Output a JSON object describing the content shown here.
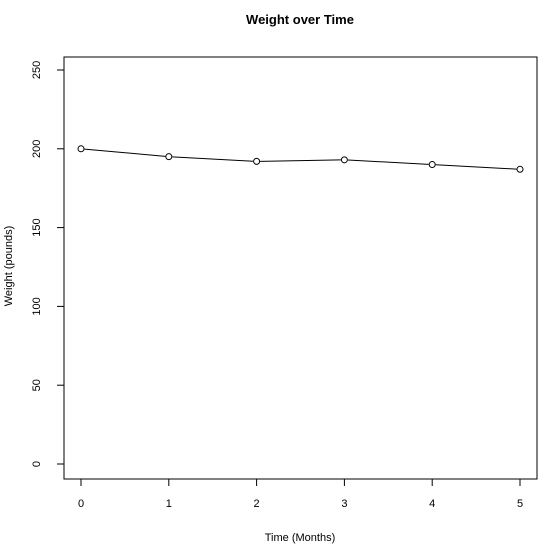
{
  "chart_data": {
    "type": "line",
    "title": "Weight over Time",
    "xlabel": "Time (Months)",
    "ylabel": "Weight (pounds)",
    "x": [
      0,
      1,
      2,
      3,
      4,
      5
    ],
    "series": [
      {
        "values": [
          200,
          195,
          192,
          193,
          190,
          187
        ]
      }
    ],
    "xlim": [
      0,
      5
    ],
    "ylim": [
      0,
      250
    ],
    "x_ticks": [
      0,
      1,
      2,
      3,
      4,
      5
    ],
    "y_ticks": [
      0,
      50,
      100,
      150,
      200,
      250
    ],
    "markers": "open-circle",
    "grid": false,
    "legend": "none",
    "colors": {
      "line": "#000000",
      "axes": "#000000"
    }
  }
}
